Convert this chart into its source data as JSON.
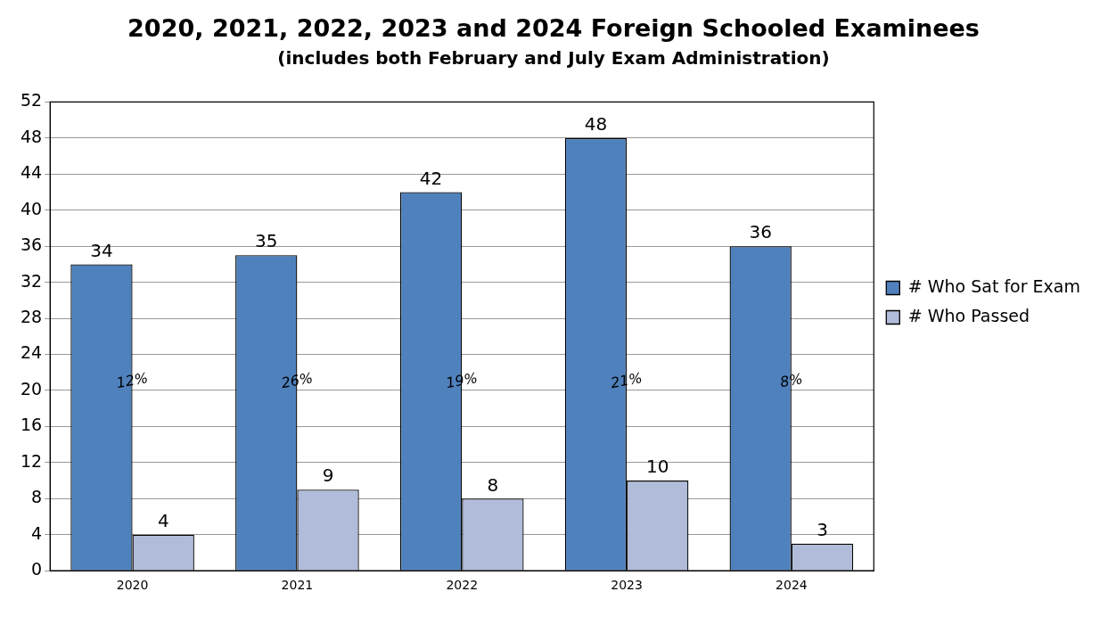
{
  "chart_data": {
    "type": "bar",
    "title": "2020, 2021, 2022, 2023 and 2024 Foreign Schooled Examinees",
    "subtitle": "(includes both February and July Exam Administration)",
    "categories": [
      "2020",
      "2021",
      "2022",
      "2023",
      "2024"
    ],
    "series": [
      {
        "name": "# Who Sat for Exam",
        "color": "#4f81bd",
        "values": [
          34,
          35,
          42,
          48,
          36
        ]
      },
      {
        "name": "# Who Passed",
        "color": "#b0bcd9",
        "values": [
          4,
          9,
          8,
          10,
          3
        ]
      }
    ],
    "ylim": [
      0,
      52
    ],
    "yticks": [
      0,
      4,
      8,
      12,
      16,
      20,
      24,
      28,
      32,
      36,
      40,
      44,
      48,
      52
    ],
    "grid": "y",
    "legend": "right",
    "data_labels": true,
    "annotations": [
      {
        "text": "12%",
        "x": "2020",
        "y": 21
      },
      {
        "text": "26%",
        "x": "2021",
        "y": 21
      },
      {
        "text": "19%",
        "x": "2022",
        "y": 21
      },
      {
        "text": "21%",
        "x": "2023",
        "y": 21
      },
      {
        "text": "8%",
        "x": "2024",
        "y": 21
      }
    ]
  }
}
